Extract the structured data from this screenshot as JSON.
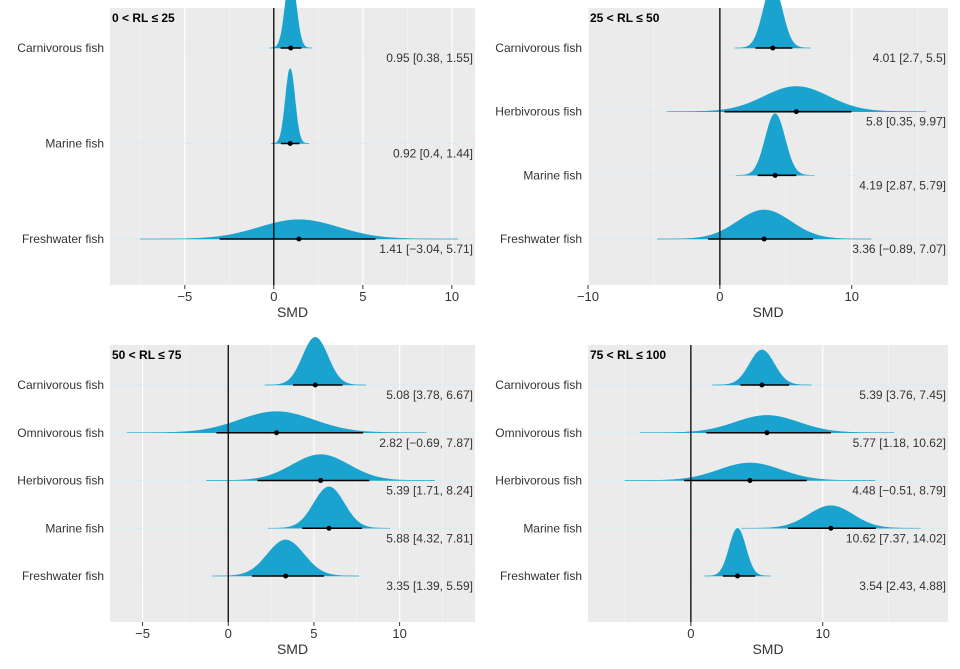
{
  "chart_data": [
    {
      "type": "ridge",
      "title": "0 < RL ≤ 25",
      "x_label": "SMD",
      "color": "#1ba3d0",
      "categories": [
        "Carnivorous fish",
        "Marine fish",
        "Freshwater fish"
      ],
      "values": [
        0.95,
        0.92,
        1.41
      ],
      "lower": [
        0.38,
        0.4,
        -3.04
      ],
      "upper": [
        1.55,
        1.44,
        5.71
      ],
      "value_labels": [
        "0.95 [0.38, 1.55]",
        "0.92 [0.4, 1.44]",
        "1.41 [−3.04, 5.71]"
      ],
      "xlim": [
        -9.2,
        11.3
      ],
      "xticks": [
        {
          "value": -5,
          "label": "−5"
        },
        0,
        5,
        10
      ]
    },
    {
      "type": "ridge",
      "title": "25 < RL ≤ 50",
      "x_label": "SMD",
      "color": "#1ba3d0",
      "categories": [
        "Carnivorous fish",
        "Herbivorous fish",
        "Marine fish",
        "Freshwater fish"
      ],
      "values": [
        4.01,
        5.8,
        4.19,
        3.36
      ],
      "lower": [
        2.7,
        0.35,
        2.87,
        -0.89
      ],
      "upper": [
        5.5,
        9.97,
        5.79,
        7.07
      ],
      "value_labels": [
        "4.01 [2.7, 5.5]",
        "5.8 [0.35, 9.97]",
        "4.19 [2.87, 5.79]",
        "3.36 [−0.89, 7.07]"
      ],
      "xlim": [
        -10,
        17.3
      ],
      "xticks": [
        {
          "value": -10,
          "label": "−10"
        },
        0,
        10
      ]
    },
    {
      "type": "ridge",
      "title": "50 < RL ≤ 75",
      "x_label": "SMD",
      "color": "#1ba3d0",
      "categories": [
        "Carnivorous fish",
        "Omnivorous fish",
        "Herbivorous fish",
        "Marine fish",
        "Freshwater fish"
      ],
      "values": [
        5.08,
        2.82,
        5.39,
        5.88,
        3.35
      ],
      "lower": [
        3.78,
        -0.69,
        1.71,
        4.32,
        1.39
      ],
      "upper": [
        6.67,
        7.87,
        8.24,
        7.81,
        5.59
      ],
      "value_labels": [
        "5.08 [3.78, 6.67]",
        "2.82 [−0.69, 7.87]",
        "5.39 [1.71, 8.24]",
        "5.88 [4.32, 7.81]",
        "3.35 [1.39, 5.59]"
      ],
      "xlim": [
        -6.9,
        14.4
      ],
      "xticks": [
        {
          "value": -5,
          "label": "−5"
        },
        0,
        5,
        10
      ]
    },
    {
      "type": "ridge",
      "title": "75 < RL ≤ 100",
      "x_label": "SMD",
      "color": "#1ba3d0",
      "categories": [
        "Carnivorous fish",
        "Omnivorous fish",
        "Herbivorous fish",
        "Marine fish",
        "Freshwater fish"
      ],
      "values": [
        5.39,
        5.77,
        4.48,
        10.62,
        3.54
      ],
      "lower": [
        3.76,
        1.18,
        -0.51,
        7.37,
        2.43
      ],
      "upper": [
        7.45,
        10.62,
        8.79,
        14.02,
        4.88
      ],
      "value_labels": [
        "5.39 [3.76, 7.45]",
        "5.77 [1.18, 10.62]",
        "4.48 [−0.51, 8.79]",
        "10.62 [7.37, 14.02]",
        "3.54 [2.43, 4.88]"
      ],
      "xlim": [
        -7.8,
        19.5
      ],
      "xticks": [
        0,
        10
      ]
    }
  ]
}
